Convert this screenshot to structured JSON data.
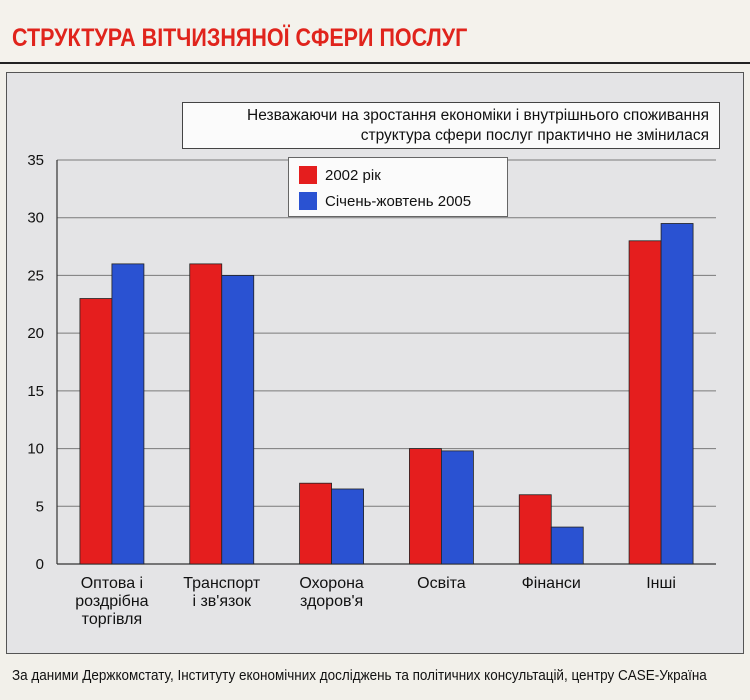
{
  "title": "СТРУКТУРА ВІТЧИЗНЯНОЇ СФЕРИ ПОСЛУГ",
  "annotation": [
    "Незважаючи на зростання економіки і внутрішнього споживання",
    "структура сфери послуг практично не змінилася"
  ],
  "footer": "За даними Держкомстату, Інституту економічних досліджень та політичних консультацій, центру CASE-Україна",
  "colors": {
    "title_red": "#e0241c",
    "series_red": "#e51e1e",
    "series_blue": "#2a52d2",
    "grid": "#7a7a7a"
  },
  "chart_data": {
    "type": "bar",
    "categories": [
      [
        "Оптова і",
        "роздрібна",
        "торгівля"
      ],
      [
        "Транспорт",
        "і зв'язок"
      ],
      [
        "Охорона",
        "здоров'я"
      ],
      [
        "Освіта"
      ],
      [
        "Фінанси"
      ],
      [
        "Інші"
      ]
    ],
    "series": [
      {
        "name": "2002 рік",
        "color": "#e51e1e",
        "values": [
          23,
          26,
          7,
          10,
          6,
          28
        ]
      },
      {
        "name": "Січень-жовтень 2005",
        "color": "#2a52d2",
        "values": [
          26,
          25,
          6.5,
          9.8,
          3.2,
          29.5
        ]
      }
    ],
    "ylim": [
      0,
      35
    ],
    "yticks": [
      0,
      5,
      10,
      15,
      20,
      25,
      30,
      35
    ],
    "grid": true,
    "legend_position": "top-center"
  }
}
